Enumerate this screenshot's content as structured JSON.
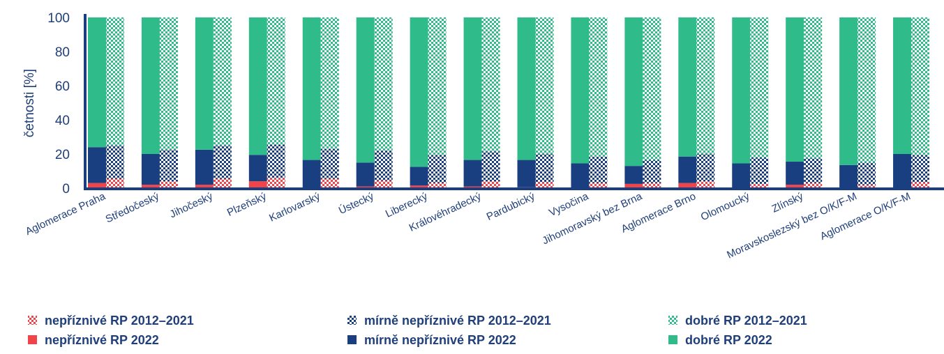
{
  "chart_data": {
    "type": "bar",
    "stacked": true,
    "grouped_pairs": true,
    "ylabel": "četnosti [%]",
    "ylim": [
      0,
      100
    ],
    "yticks": [
      0,
      20,
      40,
      60,
      80,
      100
    ],
    "grid": false,
    "legend_position": "bottom",
    "categories": [
      "Aglomerace Praha",
      "Středočeský",
      "Jihočeský",
      "Plzeňský",
      "Karlovarský",
      "Ústecký",
      "Liberecký",
      "Královéhradecký",
      "Pardubický",
      "Vysočina",
      "Jihomoravský bez Brna",
      "Aglomerace Brno",
      "Olomoucký",
      "Zlínský",
      "Moravskoslezský bez O/K/F-M",
      "Aglomerace O/K/F-M"
    ],
    "series": [
      {
        "name": "nepříznivé RP 2012–2021",
        "group": "2012–2021",
        "pattern": "checker",
        "color": "#f0444a",
        "values": [
          5.5,
          4,
          5.5,
          6,
          5.5,
          4.5,
          3,
          4,
          3.5,
          3,
          3,
          4,
          2.5,
          3,
          2,
          3.5
        ]
      },
      {
        "name": "mírně nepříznivé RP 2012–2021",
        "group": "2012–2021",
        "pattern": "checker",
        "color": "#1a3f80",
        "values": [
          19.5,
          18.5,
          19.5,
          19.5,
          17.5,
          17.5,
          16.5,
          17.5,
          16.5,
          15.5,
          13.5,
          16,
          15.5,
          14.5,
          13,
          16
        ]
      },
      {
        "name": "dobré RP 2012–2021",
        "group": "2012–2021",
        "pattern": "checker",
        "color": "#2fbb8a",
        "values": [
          75,
          77.5,
          75,
          74.5,
          77,
          78,
          80.5,
          78.5,
          80,
          81.5,
          83.5,
          80,
          82,
          82.5,
          85,
          80.5
        ]
      },
      {
        "name": "nepříznivé RP 2022",
        "group": "2022",
        "pattern": "solid",
        "color": "#f0444a",
        "values": [
          3,
          2,
          2,
          4,
          0,
          1,
          1.5,
          1,
          0.5,
          0,
          2.5,
          3,
          0,
          2,
          0,
          0
        ]
      },
      {
        "name": "mírně nepříznivé RP 2022",
        "group": "2022",
        "pattern": "solid",
        "color": "#1a3f80",
        "values": [
          21,
          18,
          20.5,
          15.5,
          16.5,
          14,
          11,
          15.5,
          16,
          14.5,
          10.5,
          15.5,
          14.5,
          13.5,
          13.5,
          20
        ]
      },
      {
        "name": "dobré RP 2022",
        "group": "2022",
        "pattern": "solid",
        "color": "#2fbb8a",
        "values": [
          76,
          80,
          77.5,
          80.5,
          83.5,
          85,
          87.5,
          83.5,
          83.5,
          85.5,
          87,
          81.5,
          85.5,
          84.5,
          86.5,
          80
        ]
      }
    ]
  }
}
